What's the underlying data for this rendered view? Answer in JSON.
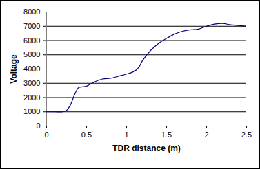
{
  "chart_data": {
    "type": "line",
    "x_label": "TDR distance (m)",
    "y_label": "Voltage",
    "x": [
      0,
      0.1,
      0.2,
      0.25,
      0.3,
      0.35,
      0.4,
      0.45,
      0.5,
      0.6,
      0.7,
      0.8,
      0.9,
      1.0,
      1.1,
      1.15,
      1.2,
      1.3,
      1.4,
      1.5,
      1.6,
      1.7,
      1.8,
      1.9,
      2.0,
      2.1,
      2.2,
      2.3,
      2.4,
      2.5
    ],
    "values": [
      1000,
      1000,
      1000,
      1100,
      1500,
      2200,
      2700,
      2750,
      2800,
      3100,
      3300,
      3350,
      3500,
      3650,
      3850,
      4100,
      4600,
      5300,
      5800,
      6150,
      6450,
      6650,
      6750,
      6800,
      7000,
      7150,
      7200,
      7100,
      7050,
      7000
    ],
    "color": "#000080",
    "xlim": [
      0,
      2.5
    ],
    "xticks": [
      0,
      0.5,
      1,
      1.5,
      2,
      2.5
    ],
    "ylim": [
      0,
      8000
    ],
    "yticks": [
      0,
      1000,
      2000,
      3000,
      4000,
      5000,
      6000,
      7000,
      8000
    ],
    "grid": true
  }
}
